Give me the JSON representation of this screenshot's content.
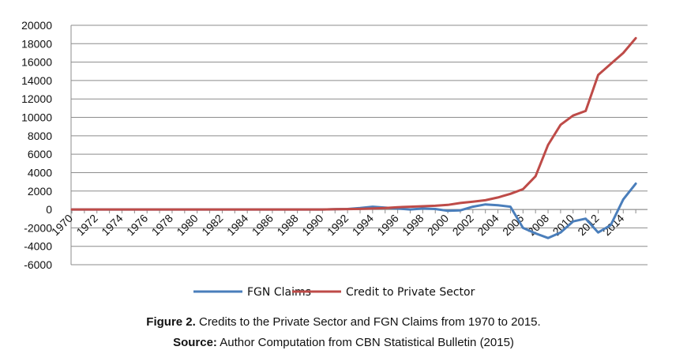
{
  "chart_data": {
    "type": "line",
    "ylim": [
      -6000,
      20000
    ],
    "yticks": [
      -6000,
      -4000,
      -2000,
      0,
      2000,
      4000,
      6000,
      8000,
      10000,
      12000,
      14000,
      16000,
      18000,
      20000
    ],
    "xlim": [
      1970,
      2015
    ],
    "xticks": [
      1970,
      1972,
      1974,
      1976,
      1978,
      1980,
      1982,
      1984,
      1986,
      1988,
      1990,
      1992,
      1994,
      1996,
      1998,
      2000,
      2002,
      2004,
      2006,
      2008,
      2010,
      2012,
      2014
    ],
    "grid": true,
    "legend": "bottom-center",
    "x": [
      1970,
      1971,
      1972,
      1973,
      1974,
      1975,
      1976,
      1977,
      1978,
      1979,
      1980,
      1981,
      1982,
      1983,
      1984,
      1985,
      1986,
      1987,
      1988,
      1989,
      1990,
      1991,
      1992,
      1993,
      1994,
      1995,
      1996,
      1997,
      1998,
      1999,
      2000,
      2001,
      2002,
      2003,
      2004,
      2005,
      2006,
      2007,
      2008,
      2009,
      2010,
      2011,
      2012,
      2013,
      2014,
      2015
    ],
    "series": [
      {
        "name": "FGN Claims",
        "color": "#4a7ebb",
        "values": [
          0,
          0,
          0,
          0,
          0,
          0,
          0,
          0,
          0,
          0,
          0,
          0,
          0,
          0,
          0,
          0,
          0,
          0,
          0,
          0,
          0,
          20,
          50,
          150,
          300,
          200,
          100,
          0,
          100,
          50,
          -150,
          -100,
          300,
          550,
          450,
          300,
          -2000,
          -2600,
          -3100,
          -2500,
          -1300,
          -1000,
          -2500,
          -1700,
          1100,
          2800
        ]
      },
      {
        "name": "Credit to Private Sector",
        "color": "#be4b48",
        "values": [
          0,
          0,
          0,
          0,
          0,
          0,
          0,
          0,
          0,
          0,
          0,
          0,
          0,
          0,
          0,
          0,
          0,
          0,
          0,
          0,
          0,
          20,
          40,
          60,
          100,
          150,
          250,
          300,
          350,
          400,
          500,
          700,
          850,
          1000,
          1300,
          1700,
          2200,
          3600,
          7000,
          9200,
          10200,
          10700,
          14600,
          15800,
          17000,
          18600
        ]
      }
    ]
  },
  "caption": {
    "figure_label": "Figure 2.",
    "figure_text": " Credits to the Private Sector and FGN Claims from 1970 to 2015.",
    "source_label": "Source:",
    "source_text": " Author Computation from CBN Statistical Bulletin (2015)"
  }
}
